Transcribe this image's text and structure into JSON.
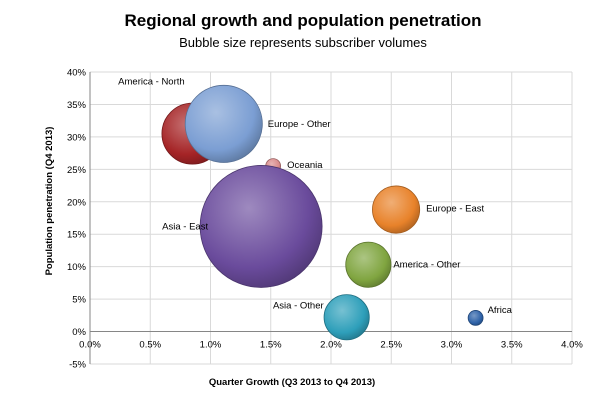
{
  "chart_data": {
    "type": "scatter",
    "subtype": "bubble",
    "title": "Regional growth and population penetration",
    "subtitle": "Bubble size represents subscriber volumes",
    "xlabel": "Quarter Growth (Q3 2013 to Q4 2013)",
    "ylabel": "Population penetration (Q4 2013)",
    "xlim": [
      0,
      0.04
    ],
    "ylim": [
      -0.05,
      0.4
    ],
    "x_ticks": [
      "0.0%",
      "0.5%",
      "1.0%",
      "1.5%",
      "2.0%",
      "2.5%",
      "3.0%",
      "3.5%",
      "4.0%"
    ],
    "y_ticks": [
      "-5%",
      "0%",
      "5%",
      "10%",
      "15%",
      "20%",
      "25%",
      "30%",
      "35%",
      "40%"
    ],
    "grid": true,
    "legend": "none",
    "points": [
      {
        "label": "America - North",
        "x": 0.0085,
        "y": 0.305,
        "size": 1.0,
        "color": "#a52426"
      },
      {
        "label": "Europe - Other",
        "x": 0.0111,
        "y": 0.32,
        "size": 1.6,
        "color": "#7b9ed3"
      },
      {
        "label": "Oceania",
        "x": 0.0152,
        "y": 0.255,
        "size": 0.06,
        "color": "#d98b8b"
      },
      {
        "label": "Asia - East",
        "x": 0.0142,
        "y": 0.162,
        "size": 4.0,
        "color": "#6a4b9c"
      },
      {
        "label": "Europe - East",
        "x": 0.0254,
        "y": 0.188,
        "size": 0.6,
        "color": "#e8822a"
      },
      {
        "label": "America - Other",
        "x": 0.0231,
        "y": 0.103,
        "size": 0.55,
        "color": "#80a540"
      },
      {
        "label": "Asia - Other",
        "x": 0.0213,
        "y": 0.022,
        "size": 0.55,
        "color": "#2e9fba"
      },
      {
        "label": "Africa",
        "x": 0.032,
        "y": 0.021,
        "size": 0.06,
        "color": "#2e62a8"
      }
    ]
  }
}
